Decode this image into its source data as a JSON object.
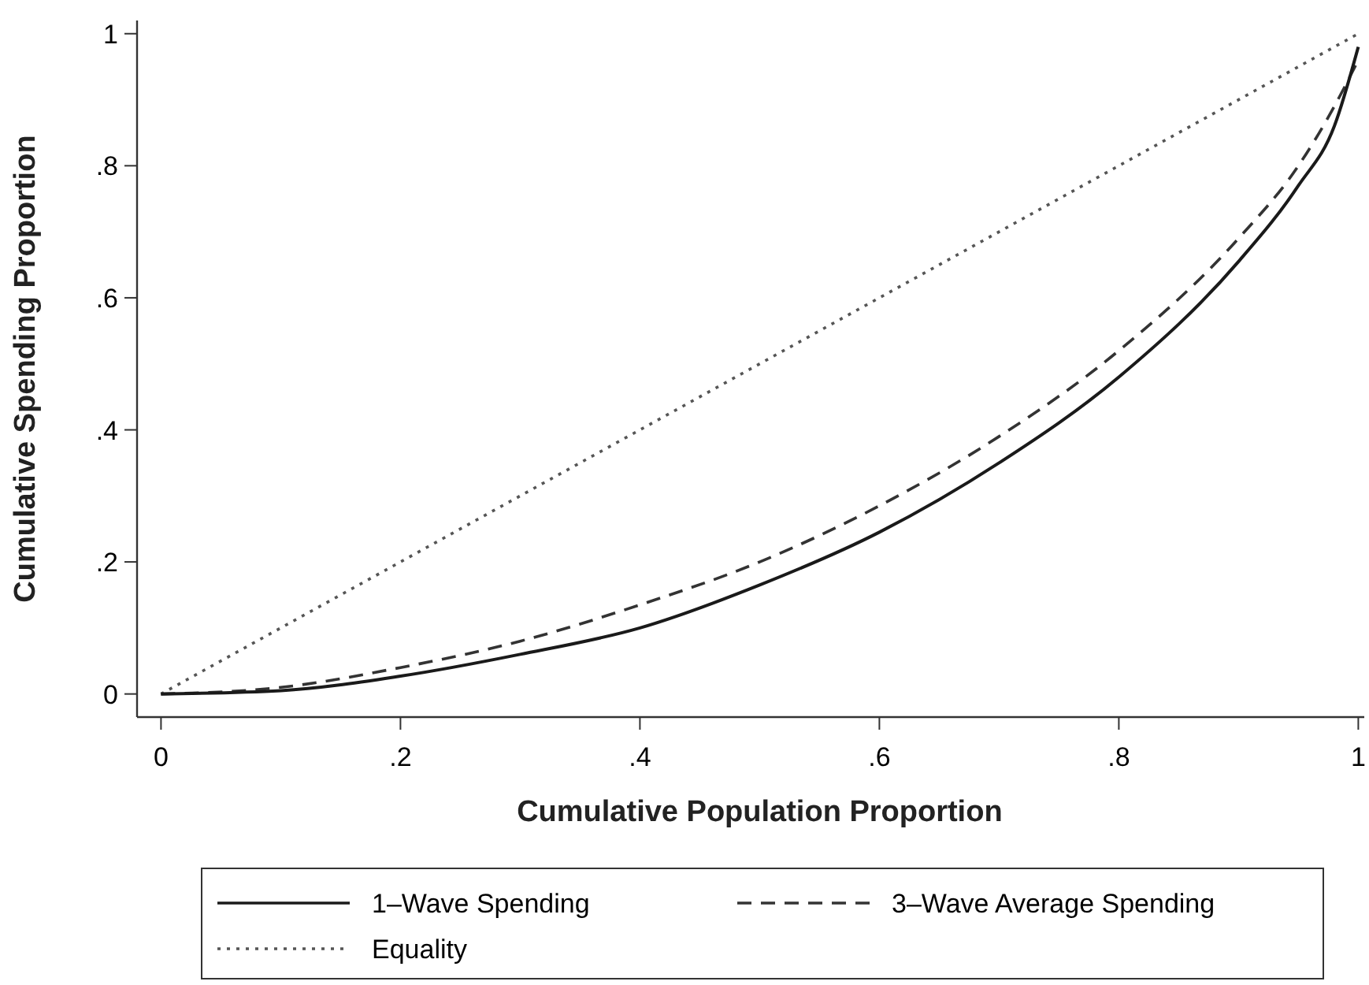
{
  "chart_data": {
    "type": "line",
    "xlabel": "Cumulative Population Proportion",
    "ylabel": "Cumulative Spending Proportion",
    "xlim": [
      -0.02,
      1.005
    ],
    "ylim": [
      -0.035,
      1.02
    ],
    "xticks": [
      0,
      {
        "value": 0.2,
        "label": ".2"
      },
      {
        "value": 0.4,
        "label": ".4"
      },
      {
        "value": 0.6,
        "label": ".6"
      },
      {
        "value": 0.8,
        "label": ".8"
      },
      1
    ],
    "yticks": [
      0,
      {
        "value": 0.2,
        "label": ".2"
      },
      {
        "value": 0.4,
        "label": ".4"
      },
      {
        "value": 0.6,
        "label": ".6"
      },
      {
        "value": 0.8,
        "label": ".8"
      },
      1
    ],
    "grid": false,
    "legend": "bottom",
    "marker": "none",
    "x": [
      0,
      0.1,
      0.2,
      0.3,
      0.4,
      0.5,
      0.6,
      0.7,
      0.8,
      0.9,
      0.95,
      0.98,
      1
    ],
    "series": [
      {
        "name": "1–Wave Spending",
        "color": "#1a1a1a",
        "line_style": "solid",
        "values": [
          0,
          0.005,
          0.027,
          0.06,
          0.1,
          0.165,
          0.245,
          0.35,
          0.48,
          0.655,
          0.77,
          0.86,
          0.98
        ]
      },
      {
        "name": "3–Wave Average Spending",
        "color": "#333333",
        "line_style": "dashed",
        "values": [
          0,
          0.01,
          0.04,
          0.08,
          0.135,
          0.2,
          0.285,
          0.39,
          0.52,
          0.69,
          0.8,
          0.89,
          0.96
        ]
      },
      {
        "name": "Equality",
        "color": "#555555",
        "line_style": "dotted",
        "x": [
          0,
          1
        ],
        "values": [
          0,
          1
        ]
      }
    ]
  }
}
